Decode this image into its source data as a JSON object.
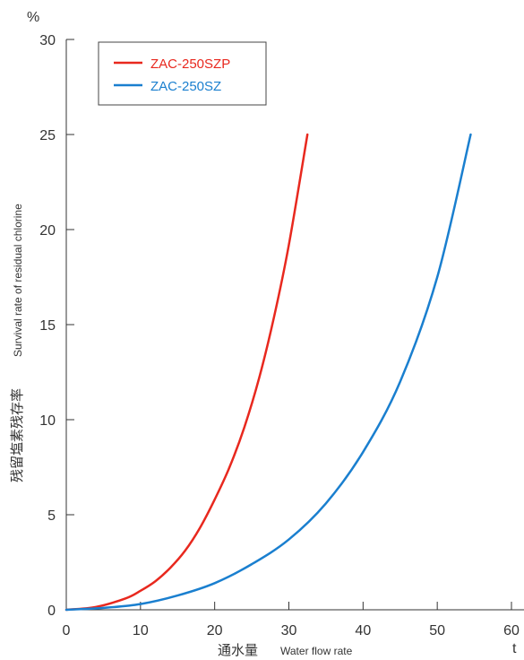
{
  "chart_data": {
    "type": "line",
    "y_unit": "%",
    "x_unit": "t",
    "xlabel_jp": "通水量",
    "xlabel_en": "Water flow rate",
    "ylabel_jp": "残留塩素残存率",
    "ylabel_en": "Survival rate of residual chlorine",
    "xlim": [
      0,
      60
    ],
    "ylim": [
      0,
      30
    ],
    "x_ticks": [
      "0",
      "10",
      "20",
      "30",
      "40",
      "50",
      "60"
    ],
    "y_ticks": [
      "0",
      "5",
      "10",
      "15",
      "20",
      "25",
      "30"
    ],
    "legend_position": "top-left",
    "grid": false,
    "series": [
      {
        "name": "ZAC-250SZP",
        "color": "#e8281e",
        "x": [
          0,
          4,
          8,
          10,
          12,
          14,
          16,
          18,
          20,
          22,
          24,
          26,
          28,
          30,
          32.5
        ],
        "y": [
          0,
          0.15,
          0.6,
          1.0,
          1.5,
          2.2,
          3.1,
          4.3,
          5.8,
          7.5,
          9.6,
          12.2,
          15.4,
          19.2,
          25
        ]
      },
      {
        "name": "ZAC-250SZ",
        "color": "#1a7fcf",
        "x": [
          0,
          5,
          10,
          15,
          20,
          25,
          30,
          35,
          40,
          45,
          50,
          54.5
        ],
        "y": [
          0,
          0.1,
          0.3,
          0.75,
          1.4,
          2.4,
          3.7,
          5.6,
          8.3,
          12.0,
          17.5,
          25
        ]
      }
    ]
  }
}
